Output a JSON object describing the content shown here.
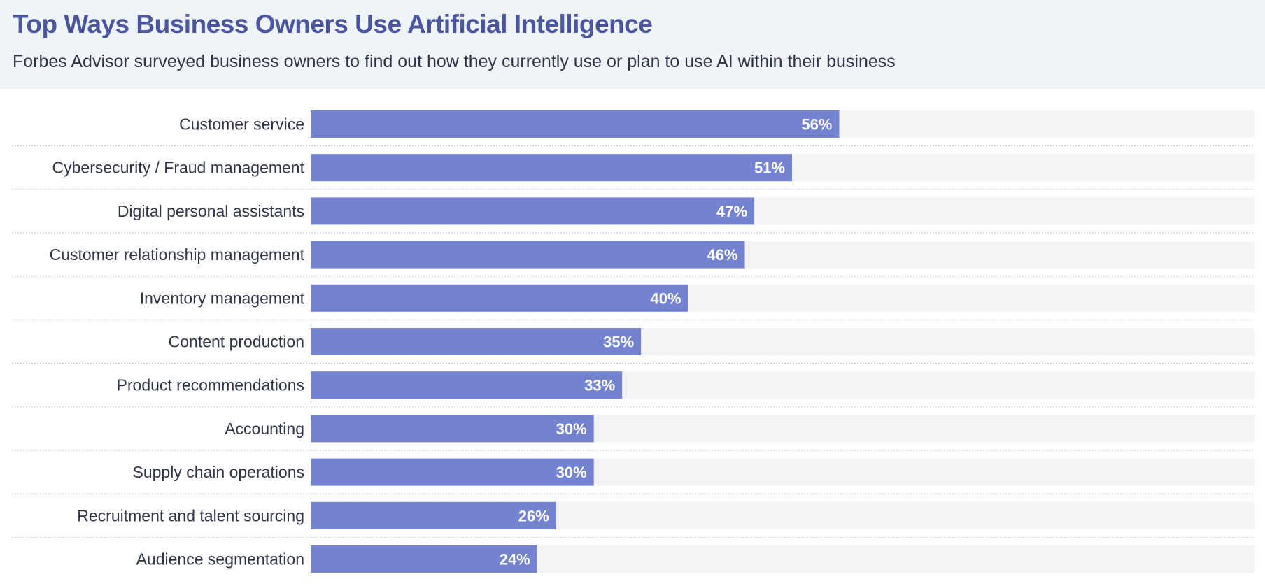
{
  "header": {
    "title": "Top Ways Business Owners Use Artificial Intelligence",
    "subtitle": "Forbes Advisor surveyed business owners to find out how they currently use or plan to use AI within their business"
  },
  "chart_data": {
    "type": "bar",
    "orientation": "horizontal",
    "title": "Top Ways Business Owners Use Artificial Intelligence",
    "subtitle": "Forbes Advisor surveyed business owners to find out how they currently use or plan to use AI within their business",
    "categories": [
      "Customer service",
      "Cybersecurity / Fraud management",
      "Digital personal assistants",
      "Customer relationship management",
      "Inventory management",
      "Content production",
      "Product recommendations",
      "Accounting",
      "Supply chain operations",
      "Recruitment and talent sourcing",
      "Audience segmentation"
    ],
    "values": [
      56,
      51,
      47,
      46,
      40,
      35,
      33,
      30,
      30,
      26,
      24
    ],
    "value_labels": [
      "56%",
      "51%",
      "47%",
      "46%",
      "40%",
      "35%",
      "33%",
      "30%",
      "30%",
      "26%",
      "24%"
    ],
    "xlim": [
      0,
      100
    ],
    "grid": false,
    "colors": {
      "bar": "#7483cf",
      "track": "#f4f4f4",
      "title": "#4b569e",
      "header_bg": "#eff4f9",
      "separator": "#cfcfcf"
    }
  }
}
